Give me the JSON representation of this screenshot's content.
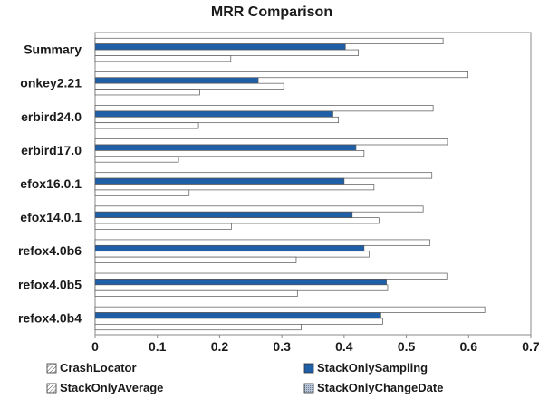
{
  "chart_data": {
    "type": "bar",
    "orientation": "horizontal",
    "title": "MRR Comparison",
    "xlabel": "",
    "ylabel": "",
    "xlim": [
      0,
      0.7
    ],
    "x_ticks": [
      "0",
      "0.1",
      "0.2",
      "0.3",
      "0.4",
      "0.5",
      "0.6",
      "0.7"
    ],
    "grid": false,
    "legend_position": "bottom",
    "categories": [
      "Summary",
      "onkey2.21",
      "erbird24.0",
      "erbird17.0",
      "efox16.0.1",
      "efox14.0.1",
      "refox4.0b6",
      "refox4.0b5",
      "refox4.0b4"
    ],
    "series": [
      {
        "name": "CrashLocator",
        "color": "#ffffff",
        "values": [
          0.559,
          0.599,
          0.543,
          0.566,
          0.541,
          0.527,
          0.538,
          0.565,
          0.626
        ]
      },
      {
        "name": "StackOnlySampling",
        "color": "#1f5fa8",
        "values": [
          0.402,
          0.262,
          0.382,
          0.419,
          0.4,
          0.413,
          0.432,
          0.468,
          0.459
        ]
      },
      {
        "name": "StackOnlyAverage",
        "color": "#ffffff",
        "values": [
          0.423,
          0.303,
          0.391,
          0.432,
          0.448,
          0.456,
          0.44,
          0.47,
          0.462
        ]
      },
      {
        "name": "StackOnlyChangeDate",
        "color": "#ffffff",
        "values": [
          0.218,
          0.168,
          0.166,
          0.134,
          0.151,
          0.219,
          0.323,
          0.325,
          0.331
        ]
      }
    ]
  }
}
